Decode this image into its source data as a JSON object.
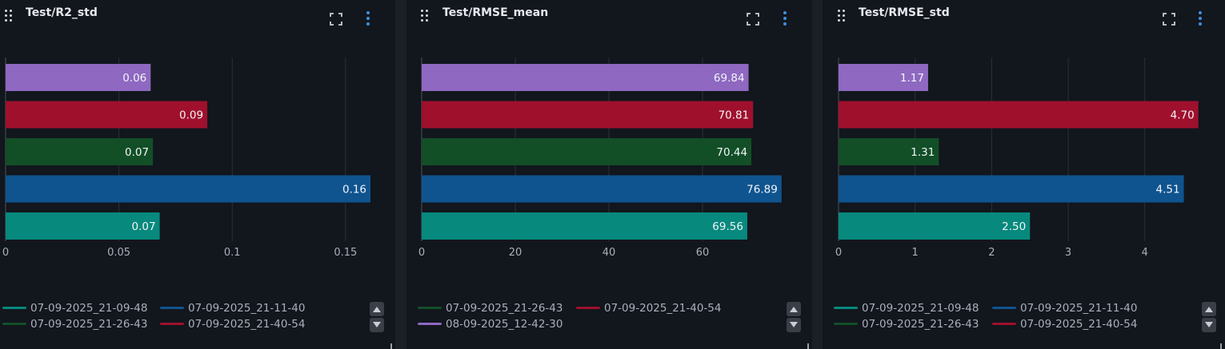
{
  "colors": {
    "run_07_09_2025_21_09_48": "#07897d",
    "run_07_09_2025_21_11_40": "#0f548f",
    "run_07_09_2025_21_26_43": "#124f27",
    "run_07_09_2025_21_40_54": "#9f102d",
    "run_08_09_2025_12_42_30": "#8e68c1",
    "text_light": "#e6e9ee",
    "axis_text": "#a9b0ba",
    "accent": "#3d8fe0"
  },
  "icons": {
    "drag": "drag-handle-icon",
    "expand": "expand-icon",
    "menu": "kebab-menu-icon",
    "legend_up": "chevron-up-icon",
    "legend_down": "chevron-down-icon",
    "resize": "resize-icon"
  },
  "panels": [
    {
      "title": "Test/R2_std",
      "legend": [
        {
          "label": "07-09-2025_21-09-48",
          "color": "#07897d"
        },
        {
          "label": "07-09-2025_21-11-40",
          "color": "#0f548f"
        },
        {
          "label": "07-09-2025_21-26-43",
          "color": "#124f27"
        },
        {
          "label": "07-09-2025_21-40-54",
          "color": "#9f102d"
        }
      ]
    },
    {
      "title": "Test/RMSE_mean",
      "legend": [
        {
          "label": "07-09-2025_21-26-43",
          "color": "#124f27"
        },
        {
          "label": "07-09-2025_21-40-54",
          "color": "#9f102d"
        },
        {
          "label": "08-09-2025_12-42-30",
          "color": "#8e68c1"
        }
      ]
    },
    {
      "title": "Test/RMSE_std",
      "legend": [
        {
          "label": "07-09-2025_21-09-48",
          "color": "#07897d"
        },
        {
          "label": "07-09-2025_21-11-40",
          "color": "#0f548f"
        },
        {
          "label": "07-09-2025_21-26-43",
          "color": "#124f27"
        },
        {
          "label": "07-09-2025_21-40-54",
          "color": "#9f102d"
        }
      ]
    }
  ],
  "chart_data": [
    {
      "type": "bar",
      "orientation": "horizontal",
      "title": "Test/R2_std",
      "xlim": [
        0,
        0.167
      ],
      "ticks": [
        0,
        0.05,
        0.1,
        0.15
      ],
      "tick_labels": [
        "0",
        "0.05",
        "0.1",
        "0.15"
      ],
      "grid": true,
      "bars": [
        {
          "value": 0.064,
          "label": "0.06",
          "color": "#8e68c1"
        },
        {
          "value": 0.089,
          "label": "0.09",
          "color": "#9f102d"
        },
        {
          "value": 0.065,
          "label": "0.07",
          "color": "#124f27"
        },
        {
          "value": 0.161,
          "label": "0.16",
          "color": "#0f548f"
        },
        {
          "value": 0.068,
          "label": "0.07",
          "color": "#07897d"
        }
      ]
    },
    {
      "type": "bar",
      "orientation": "horizontal",
      "title": "Test/RMSE_mean",
      "xlim": [
        0,
        80
      ],
      "ticks": [
        0,
        20,
        40,
        60
      ],
      "tick_labels": [
        "0",
        "20",
        "40",
        "60"
      ],
      "grid": true,
      "bars": [
        {
          "value": 69.84,
          "label": "69.84",
          "color": "#8e68c1"
        },
        {
          "value": 70.81,
          "label": "70.81",
          "color": "#9f102d"
        },
        {
          "value": 70.44,
          "label": "70.44",
          "color": "#124f27"
        },
        {
          "value": 76.89,
          "label": "76.89",
          "color": "#0f548f"
        },
        {
          "value": 69.56,
          "label": "69.56",
          "color": "#07897d"
        }
      ]
    },
    {
      "type": "bar",
      "orientation": "horizontal",
      "title": "Test/RMSE_std",
      "xlim": [
        0,
        4.87
      ],
      "ticks": [
        0,
        1,
        2,
        3,
        4
      ],
      "tick_labels": [
        "0",
        "1",
        "2",
        "3",
        "4"
      ],
      "grid": true,
      "bars": [
        {
          "value": 1.17,
          "label": "1.17",
          "color": "#8e68c1"
        },
        {
          "value": 4.7,
          "label": "4.70",
          "color": "#9f102d"
        },
        {
          "value": 1.31,
          "label": "1.31",
          "color": "#124f27"
        },
        {
          "value": 4.51,
          "label": "4.51",
          "color": "#0f548f"
        },
        {
          "value": 2.5,
          "label": "2.50",
          "color": "#07897d"
        }
      ]
    }
  ]
}
